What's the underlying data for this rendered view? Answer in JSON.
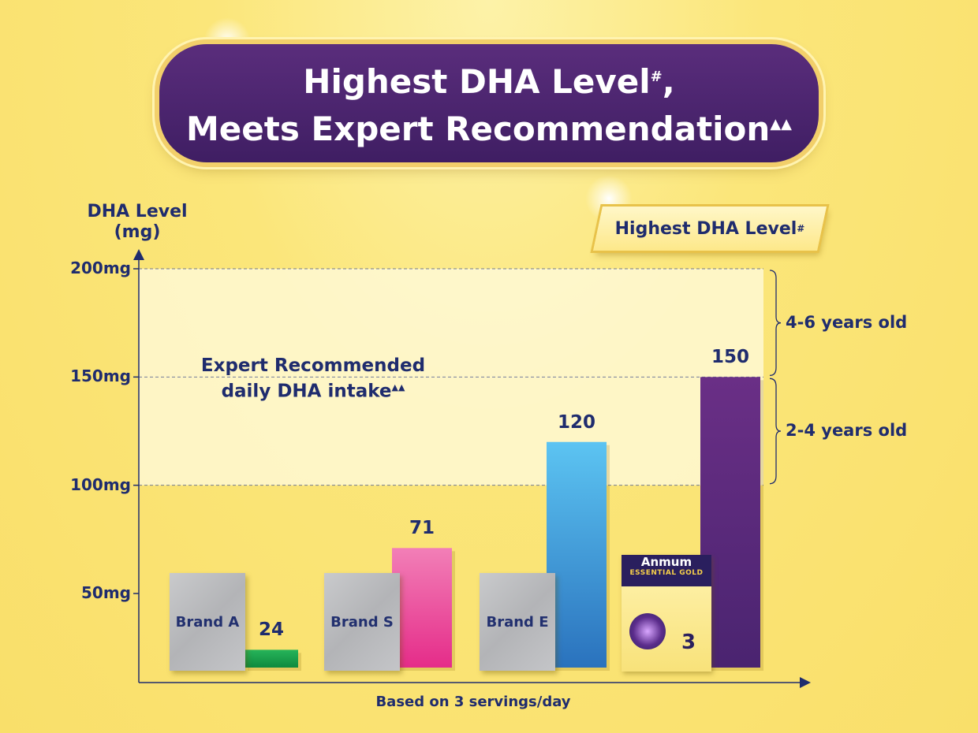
{
  "title": {
    "line1": "Highest DHA Level",
    "line1_mark": "#",
    "line1_end": ",",
    "line2": "Meets Expert Recommendation",
    "line2_mark": "▲▲"
  },
  "badge": {
    "text": "Highest DHA Level",
    "mark": "#"
  },
  "expert_note": {
    "line1": "Expert Recommended",
    "line2": "daily DHA intake",
    "mark": "▲▲"
  },
  "product": {
    "brand": "Anmum",
    "line": "ESSENTIAL GOLD",
    "step": "3"
  },
  "colors": {
    "brand_a": "#1aa850",
    "brand_s": "#ee4d9a",
    "brand_e": "#3a9ee0",
    "anmum": "#5a2a7a",
    "title_bg": "#4a2470",
    "text": "#1f2c6e"
  },
  "chart_data": {
    "type": "bar",
    "categories": [
      "Brand A",
      "Brand S",
      "Brand E",
      "Anmum Essential Gold"
    ],
    "values": [
      24,
      71,
      120,
      150
    ],
    "value_labels": [
      "24",
      "71",
      "120",
      "150"
    ],
    "xlabel": "Based on 3 servings/day",
    "ylabel": "DHA Level (mg)",
    "ylabel_line1": "DHA Level",
    "ylabel_line2": "(mg)",
    "yticks": [
      50,
      100,
      150,
      200
    ],
    "ytick_labels": [
      "50mg",
      "100mg",
      "150mg",
      "200mg"
    ],
    "ylim": [
      15,
      200
    ],
    "reference_ranges": [
      {
        "label": "2-4 years old",
        "from": 100,
        "to": 150
      },
      {
        "label": "4-6 years old",
        "from": 150,
        "to": 200
      }
    ],
    "grid": "dashed lines at 100, 150, 200"
  }
}
